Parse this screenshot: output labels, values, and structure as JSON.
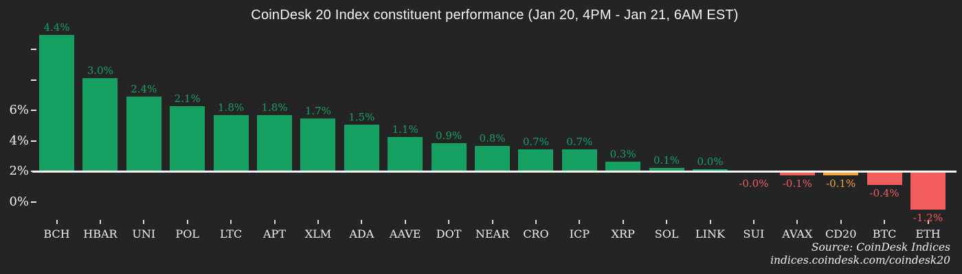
{
  "chart_data": {
    "type": "bar",
    "title": "CoinDesk 20 Index constituent performance (Jan 20, 4PM - Jan 21, 6AM EST)",
    "xlabel": "",
    "ylabel": "",
    "categories": [
      "BCH",
      "HBAR",
      "UNI",
      "POL",
      "LTC",
      "APT",
      "XLM",
      "ADA",
      "AAVE",
      "DOT",
      "NEAR",
      "CRO",
      "ICP",
      "XRP",
      "SOL",
      "LINK",
      "SUI",
      "AVAX",
      "CD20",
      "BTC",
      "ETH"
    ],
    "values": [
      4.4,
      3.0,
      2.4,
      2.1,
      1.8,
      1.8,
      1.7,
      1.5,
      1.1,
      0.9,
      0.8,
      0.7,
      0.7,
      0.3,
      0.1,
      0.0,
      -0.0,
      -0.1,
      -0.1,
      -0.4,
      -1.2
    ],
    "value_labels": [
      "4.4%",
      "3.0%",
      "2.4%",
      "2.1%",
      "1.8%",
      "1.8%",
      "1.7%",
      "1.5%",
      "1.1%",
      "0.9%",
      "0.8%",
      "0.7%",
      "0.7%",
      "0.3%",
      "0.1%",
      "0.0%",
      "-0.0%",
      "-0.1%",
      "-0.1%",
      "-0.4%",
      "-1.2%"
    ],
    "highlight_category": "CD20",
    "y_tick_labels": [
      "",
      "",
      "6%",
      "4%",
      "2%",
      "0%"
    ],
    "grid": false,
    "legend": false,
    "annotations": {
      "source": "Source: CoinDesk Indices",
      "url": "indices.coindesk.com/coindesk20"
    },
    "colors": {
      "background": "#242424",
      "positive": "#16a163",
      "negative": "#f15d5d",
      "highlight": "#f0a63c",
      "title_text": "#f5f5f5",
      "axis_text": "#f0f0f0",
      "baseline": "#f5f5f5"
    }
  }
}
